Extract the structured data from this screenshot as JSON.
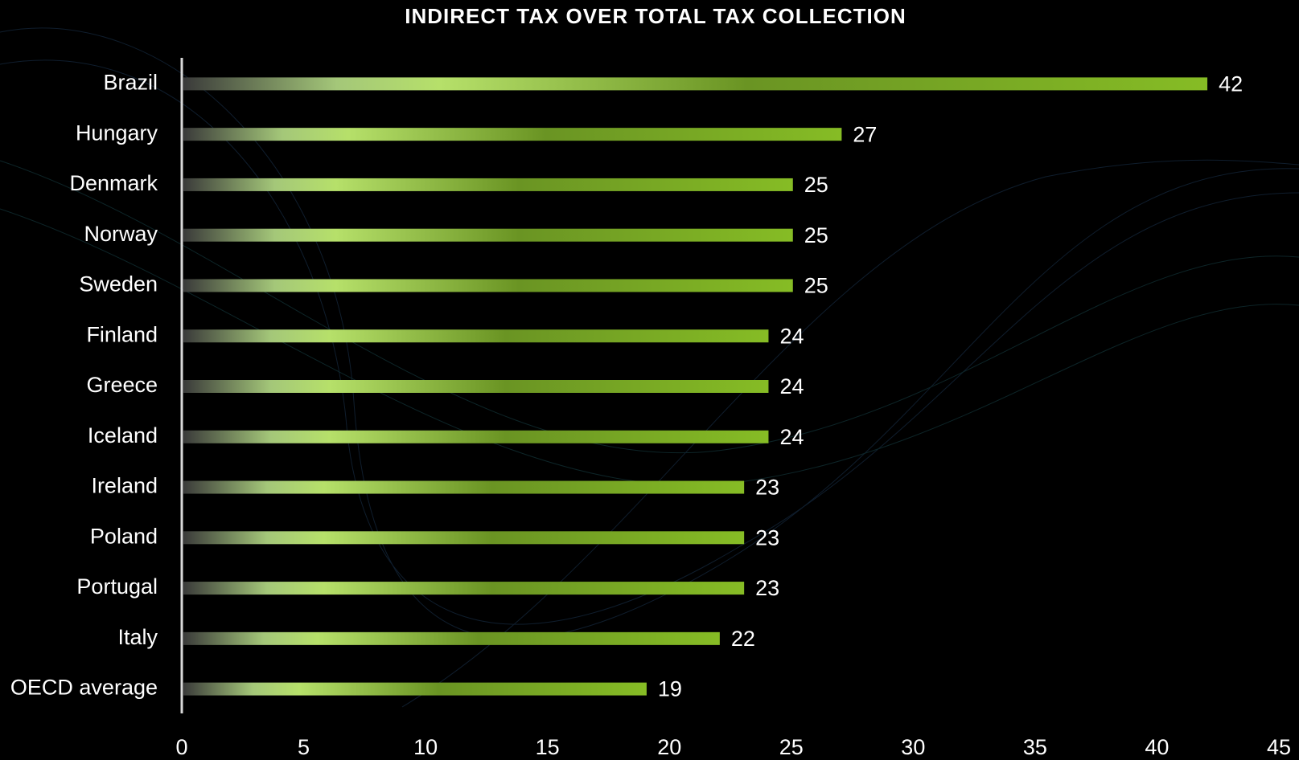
{
  "chart_data": {
    "type": "bar",
    "orientation": "horizontal",
    "title": "INDIRECT TAX OVER TOTAL TAX COLLECTION",
    "categories": [
      "Brazil",
      "Hungary",
      "Denmark",
      "Norway",
      "Sweden",
      "Finland",
      "Greece",
      "Iceland",
      "Ireland",
      "Poland",
      "Portugal",
      "Italy",
      "OECD average"
    ],
    "values": [
      42,
      27,
      25,
      25,
      25,
      24,
      24,
      24,
      23,
      23,
      23,
      22,
      19
    ],
    "color": "#86bc25",
    "xlim": [
      0,
      45
    ],
    "xticks": [
      0,
      5,
      10,
      15,
      20,
      25,
      30,
      35,
      40,
      45
    ],
    "grid": false
  }
}
